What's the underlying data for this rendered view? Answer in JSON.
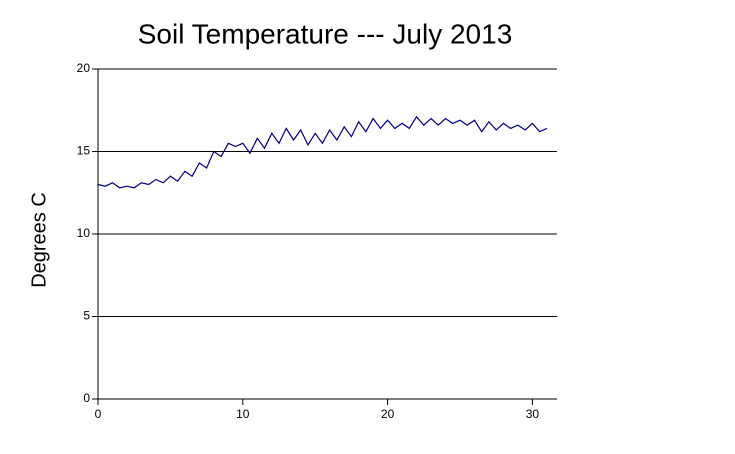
{
  "chart_data": {
    "type": "line",
    "title": "Soil Temperature --- July 2013",
    "y_label": "Degrees C",
    "x": [
      0,
      0.5,
      1,
      1.5,
      2,
      2.5,
      3,
      3.5,
      4,
      4.5,
      5,
      5.5,
      6,
      6.5,
      7,
      7.5,
      8,
      8.5,
      9,
      9.5,
      10,
      10.5,
      11,
      11.5,
      12,
      12.5,
      13,
      13.5,
      14,
      14.5,
      15,
      15.5,
      16,
      16.5,
      17,
      17.5,
      18,
      18.5,
      19,
      19.5,
      20,
      20.5,
      21,
      21.5,
      22,
      22.5,
      23,
      23.5,
      24,
      24.5,
      25,
      25.5,
      26,
      26.5,
      27,
      27.5,
      28,
      28.5,
      29,
      29.5,
      30,
      30.5,
      31
    ],
    "series": [
      {
        "name": "Soil Temperature",
        "color": "#000080",
        "values": [
          13.0,
          12.9,
          13.1,
          12.8,
          12.9,
          12.8,
          13.1,
          13.0,
          13.3,
          13.1,
          13.5,
          13.2,
          13.8,
          13.5,
          14.3,
          14.0,
          15.0,
          14.7,
          15.5,
          15.3,
          15.5,
          14.9,
          15.8,
          15.2,
          16.1,
          15.5,
          16.4,
          15.7,
          16.3,
          15.4,
          16.1,
          15.5,
          16.3,
          15.7,
          16.5,
          15.9,
          16.8,
          16.2,
          17.0,
          16.4,
          16.9,
          16.4,
          16.7,
          16.4,
          17.1,
          16.6,
          17.0,
          16.6,
          17.0,
          16.7,
          16.9,
          16.6,
          16.9,
          16.2,
          16.8,
          16.3,
          16.7,
          16.4,
          16.6,
          16.3,
          16.7,
          16.2,
          16.4
        ]
      }
    ],
    "xlim": [
      0,
      31.7
    ],
    "ylim": [
      0,
      20
    ],
    "xticks": [
      0,
      10,
      20,
      30
    ],
    "yticks": [
      0,
      5,
      10,
      15,
      20
    ],
    "grid": true
  }
}
